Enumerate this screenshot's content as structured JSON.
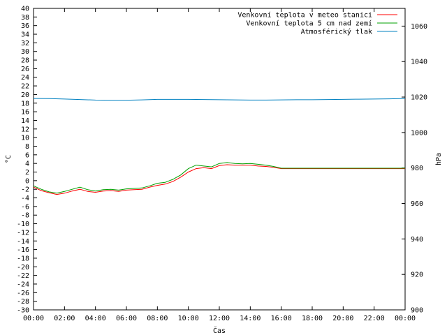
{
  "chart_data": {
    "type": "line",
    "xlabel": "Čas",
    "ylabel_left": "°C",
    "ylabel_right": "hPa",
    "x_ticks": [
      "00:00",
      "02:00",
      "04:00",
      "06:00",
      "08:00",
      "10:00",
      "12:00",
      "14:00",
      "16:00",
      "18:00",
      "20:00",
      "22:00",
      "00:00"
    ],
    "x_range_hours": [
      0,
      24
    ],
    "ylim_left": [
      -30,
      40
    ],
    "y_left_step": 2,
    "ylim_right": [
      900,
      1070
    ],
    "y_right_ticks": [
      900,
      920,
      940,
      960,
      980,
      1000,
      1020,
      1040,
      1060
    ],
    "grid": false,
    "legend_position": "top-right",
    "series": [
      {
        "name": "Venkovní teplota v meteo stanici",
        "axis": "left",
        "color": "#ff0000",
        "x": [
          0,
          0.5,
          1,
          1.5,
          2,
          2.5,
          3,
          3.5,
          4,
          4.5,
          5,
          5.5,
          6,
          6.5,
          7,
          7.5,
          8,
          8.5,
          9,
          9.5,
          10,
          10.5,
          11,
          11.5,
          12,
          12.5,
          13,
          13.5,
          14,
          14.5,
          15,
          15.5,
          16,
          16.5,
          17,
          18,
          19,
          20,
          21,
          22,
          23,
          24
        ],
        "values": [
          -1.5,
          -2.3,
          -2.8,
          -3.2,
          -2.9,
          -2.4,
          -2.0,
          -2.5,
          -2.7,
          -2.4,
          -2.3,
          -2.5,
          -2.2,
          -2.1,
          -2.0,
          -1.5,
          -1.1,
          -0.8,
          -0.2,
          0.8,
          2.0,
          2.8,
          3.0,
          2.8,
          3.5,
          3.7,
          3.6,
          3.6,
          3.6,
          3.4,
          3.3,
          3.1,
          2.8,
          2.8,
          2.8,
          2.8,
          2.8,
          2.8,
          2.8,
          2.8,
          2.8,
          2.8
        ]
      },
      {
        "name": "Venkovní teplota 5 cm nad zemí",
        "axis": "left",
        "color": "#00a000",
        "x": [
          0,
          0.5,
          1,
          1.5,
          2,
          2.5,
          3,
          3.5,
          4,
          4.5,
          5,
          5.5,
          6,
          6.5,
          7,
          7.5,
          8,
          8.5,
          9,
          9.5,
          10,
          10.5,
          11,
          11.5,
          12,
          12.5,
          13,
          13.5,
          14,
          14.5,
          15,
          15.5,
          16,
          16.5,
          17,
          18,
          19,
          20,
          21,
          22,
          23,
          24
        ],
        "values": [
          -1.2,
          -2.0,
          -2.6,
          -2.9,
          -2.5,
          -2.0,
          -1.5,
          -2.1,
          -2.4,
          -2.1,
          -2.0,
          -2.2,
          -1.9,
          -1.8,
          -1.7,
          -1.2,
          -0.6,
          -0.4,
          0.3,
          1.3,
          2.8,
          3.6,
          3.4,
          3.2,
          4.0,
          4.2,
          4.0,
          3.9,
          4.0,
          3.8,
          3.6,
          3.3,
          2.9,
          2.9,
          2.9,
          2.9,
          2.9,
          2.9,
          2.9,
          2.9,
          2.9,
          2.9
        ]
      },
      {
        "name": "Atmosférický tlak",
        "axis": "right",
        "color": "#0080c0",
        "x": [
          0,
          1,
          2,
          3,
          4,
          5,
          6,
          7,
          8,
          9,
          10,
          11,
          12,
          13,
          14,
          15,
          16,
          17,
          18,
          19,
          20,
          21,
          22,
          23,
          24
        ],
        "values": [
          1019.2,
          1019.1,
          1018.9,
          1018.6,
          1018.3,
          1018.2,
          1018.2,
          1018.4,
          1018.7,
          1018.7,
          1018.7,
          1018.6,
          1018.5,
          1018.4,
          1018.3,
          1018.3,
          1018.4,
          1018.5,
          1018.5,
          1018.6,
          1018.7,
          1018.8,
          1018.9,
          1019.0,
          1019.2
        ]
      }
    ]
  }
}
